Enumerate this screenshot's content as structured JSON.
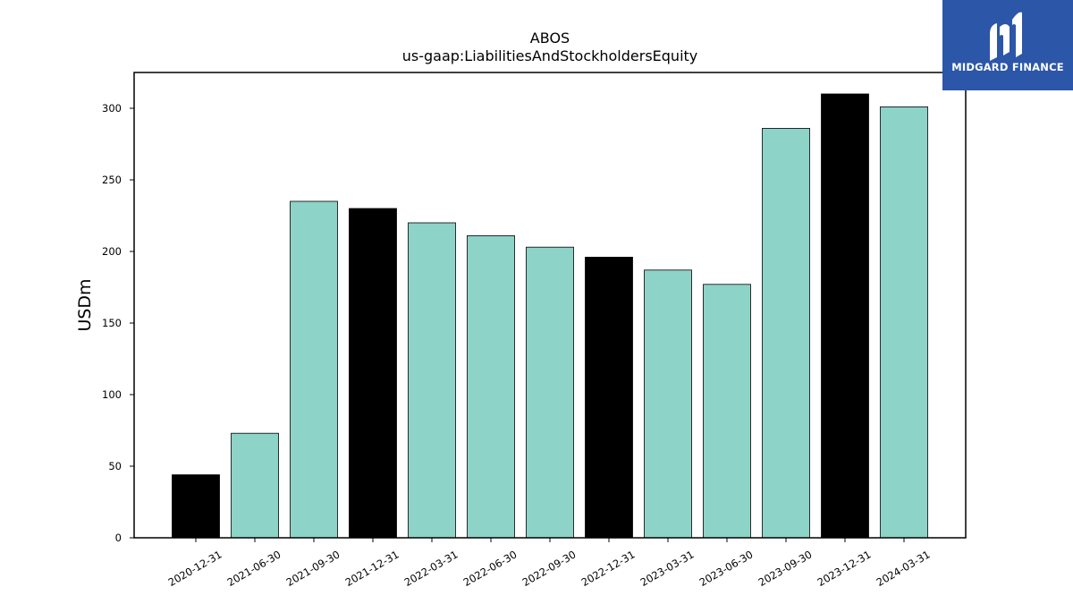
{
  "chart_data": {
    "type": "bar",
    "title": "ABOS",
    "subtitle": "us-gaap:LiabilitiesAndStockholdersEquity",
    "xlabel": "",
    "ylabel": "USDm",
    "ylim": [
      0,
      325
    ],
    "yticks": [
      0,
      50,
      100,
      150,
      200,
      250,
      300
    ],
    "grid": false,
    "categories": [
      "2020-12-31",
      "2021-06-30",
      "2021-09-30",
      "2021-12-31",
      "2022-03-31",
      "2022-06-30",
      "2022-09-30",
      "2022-12-31",
      "2023-03-31",
      "2023-06-30",
      "2023-09-30",
      "2023-12-31",
      "2024-03-31"
    ],
    "values": [
      44,
      73,
      235,
      230,
      220,
      211,
      203,
      196,
      187,
      177,
      286,
      310,
      301
    ],
    "bar_colors": [
      "#000000",
      "#8dd3c7",
      "#8dd3c7",
      "#000000",
      "#8dd3c7",
      "#8dd3c7",
      "#8dd3c7",
      "#000000",
      "#8dd3c7",
      "#8dd3c7",
      "#8dd3c7",
      "#000000",
      "#8dd3c7"
    ]
  },
  "logo": {
    "text": "MIDGARD FINANCE",
    "background": "#2c56a8"
  }
}
